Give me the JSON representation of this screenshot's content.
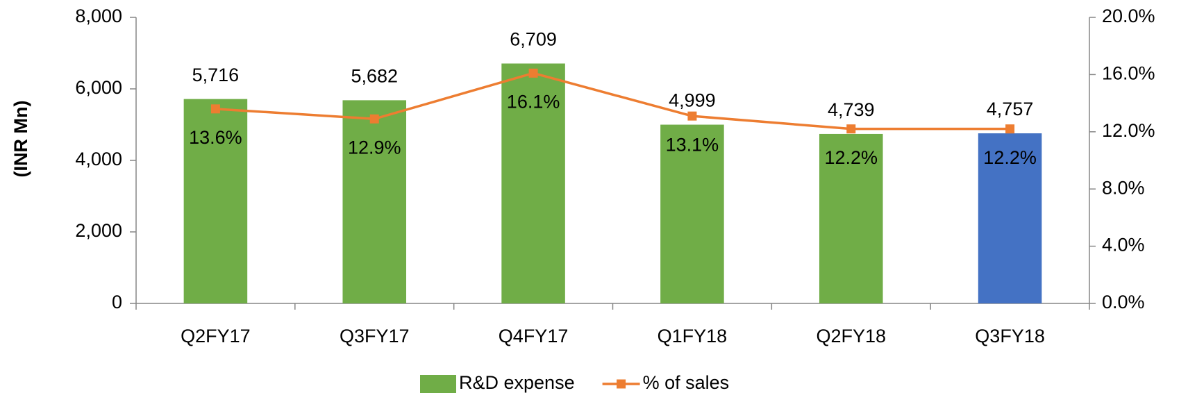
{
  "chart_data": {
    "type": "bar-line",
    "y_label": "(INR Mn)",
    "categories": [
      "Q2FY17",
      "Q3FY17",
      "Q4FY17",
      "Q1FY18",
      "Q2FY18",
      "Q3FY18"
    ],
    "series": [
      {
        "name": "R&D expense",
        "type": "bar",
        "color": "#70ad47",
        "point_colors": [
          "#70ad47",
          "#70ad47",
          "#70ad47",
          "#70ad47",
          "#70ad47",
          "#4472c4"
        ],
        "values": [
          5716,
          5682,
          6709,
          4999,
          4739,
          4757
        ],
        "value_labels": [
          "5,716",
          "5,682",
          "6,709",
          "4,999",
          "4,739",
          "4,757"
        ]
      },
      {
        "name": "% of sales",
        "type": "line",
        "axis": "y2",
        "color": "#ed7d31",
        "values": [
          13.6,
          12.9,
          16.1,
          13.1,
          12.2,
          12.2
        ],
        "value_labels": [
          "13.6%",
          "12.9%",
          "16.1%",
          "13.1%",
          "12.2%",
          "12.2%"
        ]
      }
    ],
    "ylim": [
      0,
      8000
    ],
    "yticks": [
      0,
      {
        "value": 2000,
        "label": "2,000"
      },
      {
        "value": 4000,
        "label": "4,000"
      },
      {
        "value": 6000,
        "label": "6,000"
      },
      {
        "value": 8000,
        "label": "8,000"
      }
    ],
    "y2lim": [
      0,
      20
    ],
    "y2ticks": [
      {
        "value": 0,
        "label": "0.0%"
      },
      {
        "value": 4,
        "label": "4.0%"
      },
      {
        "value": 8,
        "label": "8.0%"
      },
      {
        "value": 12,
        "label": "12.0%"
      },
      {
        "value": 16,
        "label": "16.0%"
      },
      {
        "value": 20,
        "label": "20.0%"
      }
    ],
    "grid": false,
    "legend": "bottom"
  }
}
